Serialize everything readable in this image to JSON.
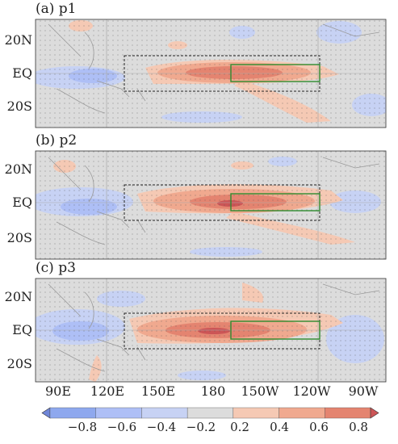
{
  "panels": [
    {
      "title": "(a) p1"
    },
    {
      "title": "(b) p2"
    },
    {
      "title": "(c) p3"
    }
  ],
  "lat_labels": [
    "20N",
    "EQ",
    "20S"
  ],
  "lon_labels": [
    "90E",
    "120E",
    "150E",
    "180",
    "150W",
    "120W",
    "90W"
  ],
  "colorbar": {
    "tick_labels": [
      "−0.8",
      "−0.6",
      "−0.4",
      "−0.2",
      "0.2",
      "0.4",
      "0.6",
      "0.8"
    ],
    "colors": [
      "#6f86d8",
      "#8ea8ee",
      "#aebff6",
      "#c7d2f4",
      "#dcdcdc",
      "#f5c9b4",
      "#f0a98f",
      "#e48470",
      "#cc5556"
    ]
  },
  "colors": {
    "ocean_neutral": "#dcdcdc",
    "box_outer": "#222222",
    "box_inner": "#2e8b2e"
  }
}
